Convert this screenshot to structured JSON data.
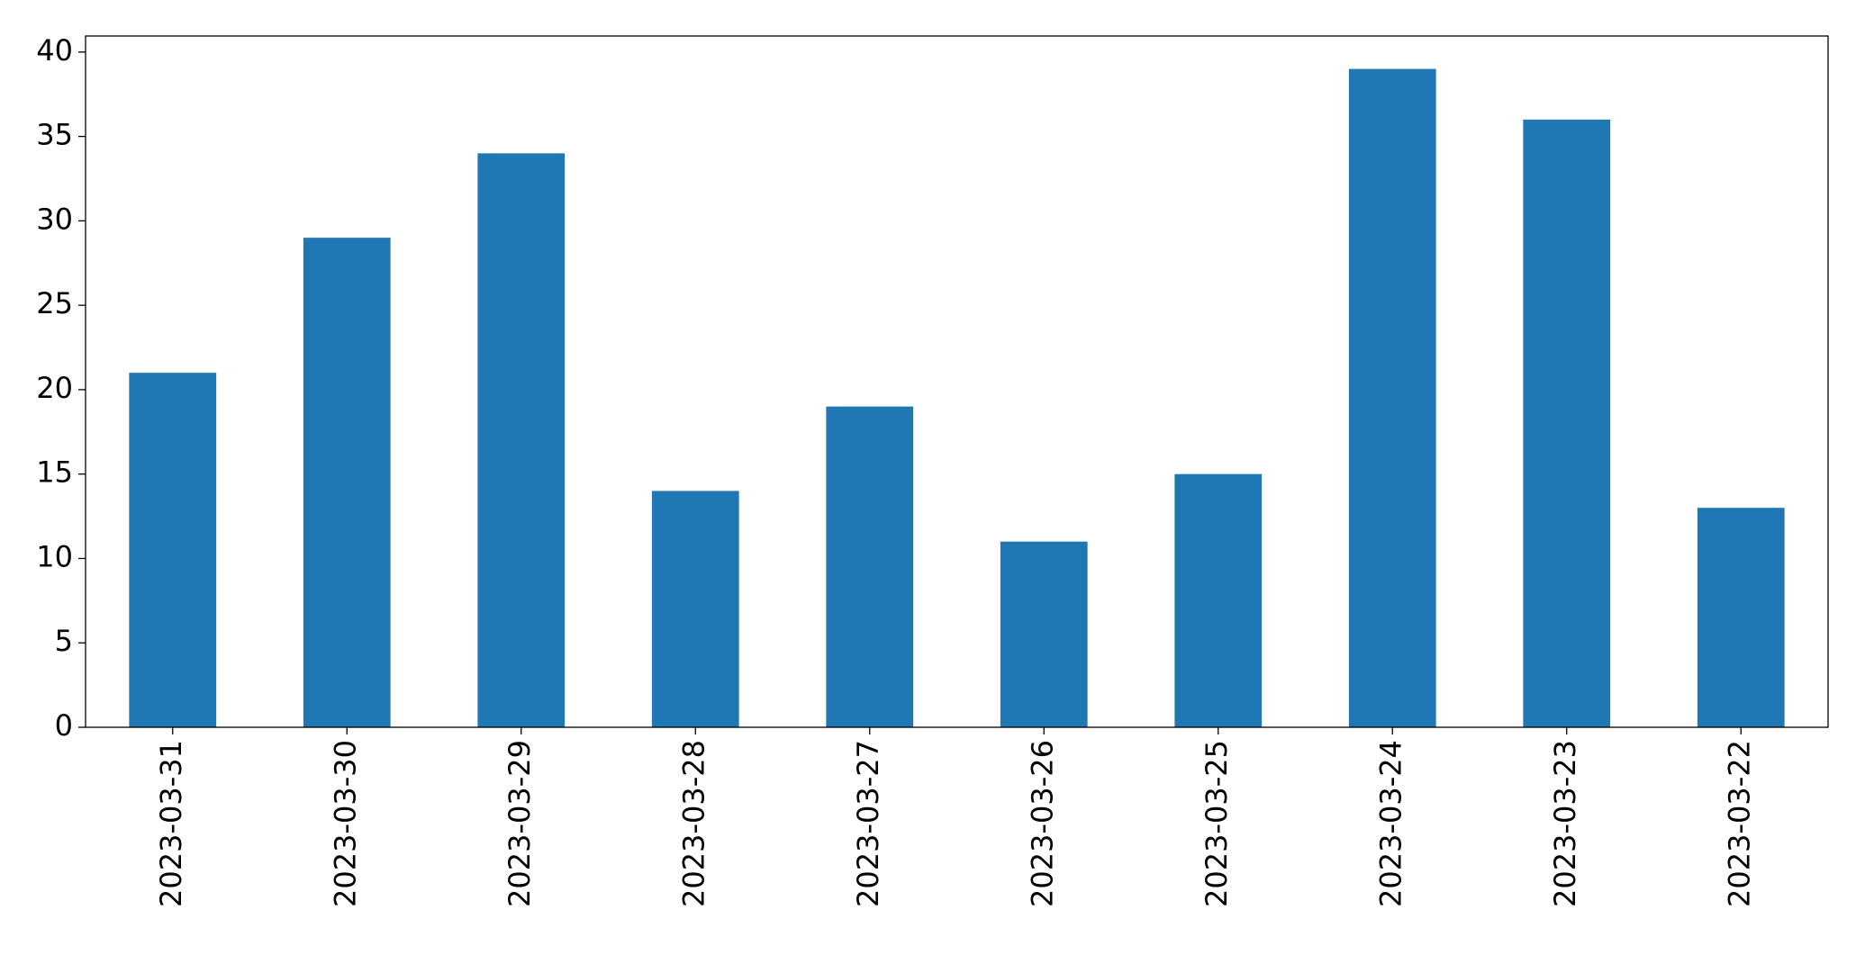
{
  "chart_data": {
    "type": "bar",
    "categories": [
      "2023-03-31",
      "2023-03-30",
      "2023-03-29",
      "2023-03-28",
      "2023-03-27",
      "2023-03-26",
      "2023-03-25",
      "2023-03-24",
      "2023-03-23",
      "2023-03-22"
    ],
    "values": [
      21,
      29,
      34,
      14,
      19,
      11,
      15,
      39,
      36,
      13
    ],
    "color": "#1f77b4",
    "ylim": [
      0,
      40.95
    ],
    "yticks": [
      0,
      5,
      10,
      15,
      20,
      25,
      30,
      35,
      40
    ],
    "grid": false
  }
}
